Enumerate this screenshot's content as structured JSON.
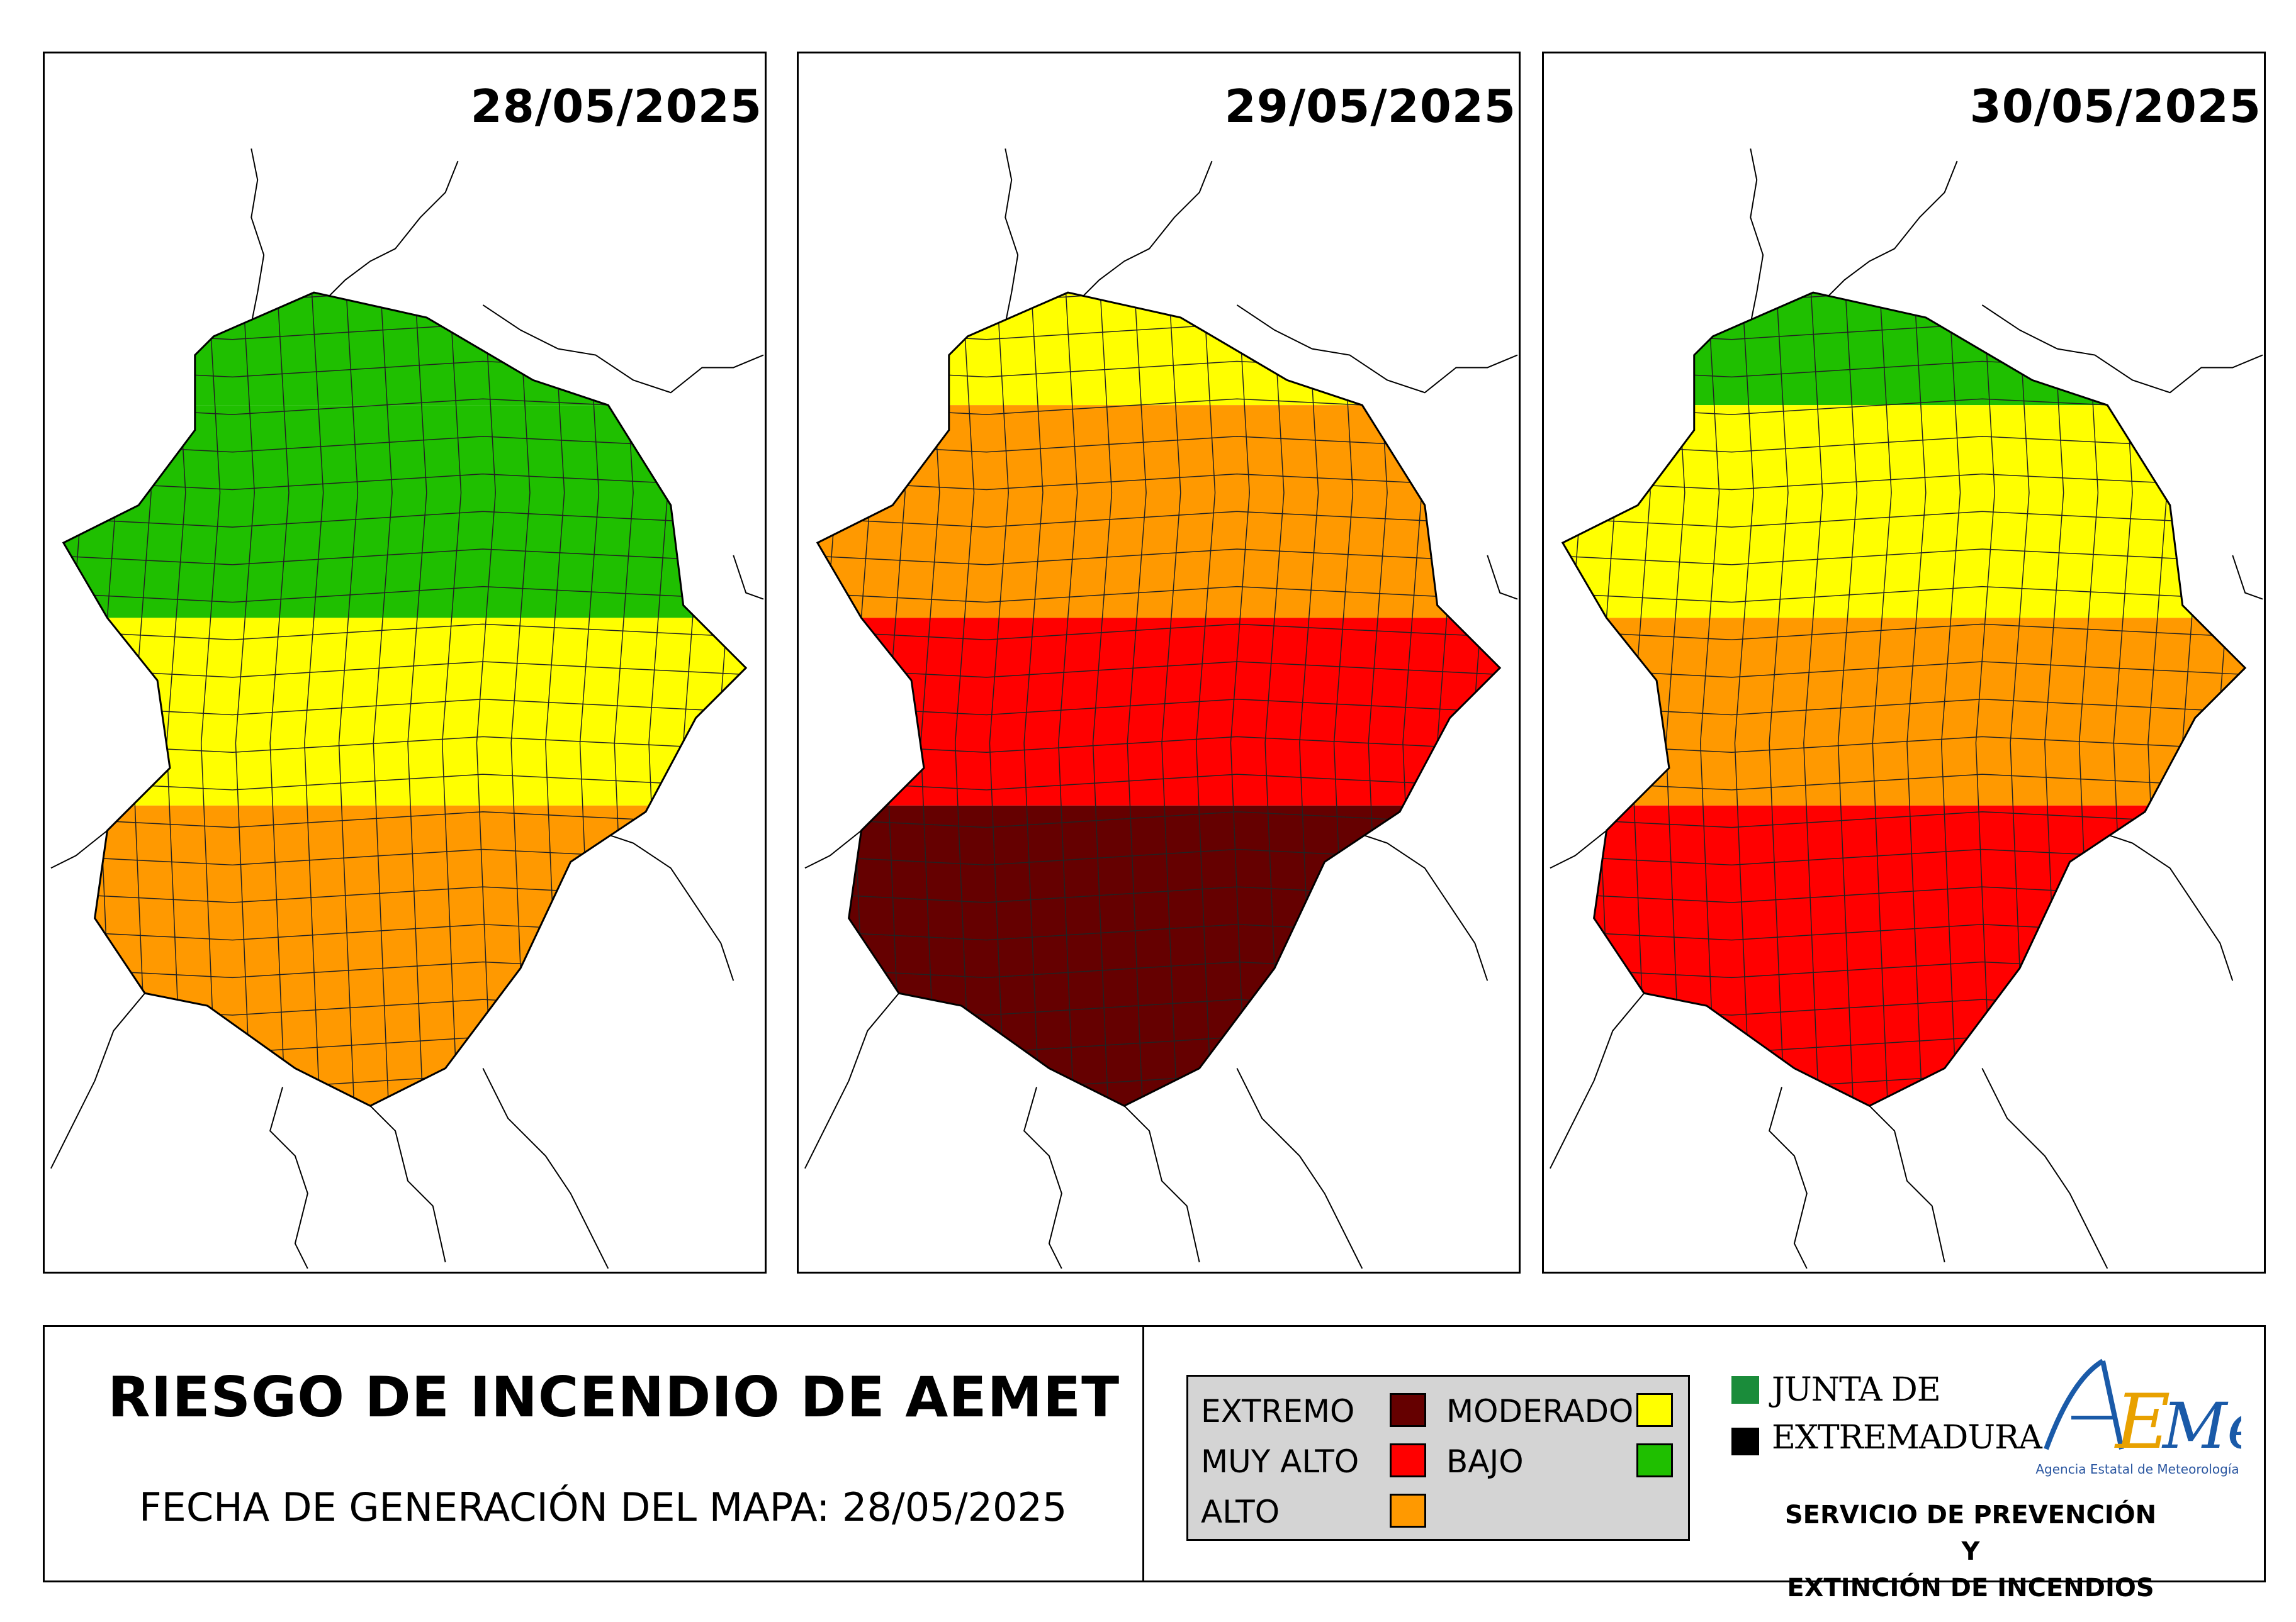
{
  "maps": [
    {
      "date": "28/05/2025",
      "scheme": [
        "#1fbf00",
        "#1fbf00",
        "#ffff00",
        "#ff9900"
      ]
    },
    {
      "date": "29/05/2025",
      "scheme": [
        "#ffff00",
        "#ff9900",
        "#ff0000",
        "#650000"
      ]
    },
    {
      "date": "30/05/2025",
      "scheme": [
        "#1fbf00",
        "#ffff00",
        "#ff9900",
        "#ff0000"
      ]
    }
  ],
  "footer": {
    "title": "RIESGO DE INCENDIO DE AEMET",
    "generation_date": "FECHA DE GENERACIÓN DEL MAPA: 28/05/2025"
  },
  "legend": {
    "items": [
      {
        "label": "EXTREMO",
        "color": "#650000"
      },
      {
        "label": "MUY ALTO",
        "color": "#ff0000"
      },
      {
        "label": "ALTO",
        "color": "#ff9900"
      },
      {
        "label": "MODERADO",
        "color": "#ffff00"
      },
      {
        "label": "BAJO",
        "color": "#1fbf00"
      }
    ]
  },
  "junta": {
    "line1": "JUNTA DE",
    "line2": "EXTREMADURA",
    "colors": [
      "#1a8c3a",
      "#000000"
    ]
  },
  "aemet": {
    "logo_text": "AEMet",
    "subtitle": "Agencia Estatal de Meteorología",
    "colors": [
      "#1a5aa8",
      "#e8a100"
    ]
  },
  "service": {
    "line1": "SERVICIO DE PREVENCIÓN Y",
    "line2": "EXTINCIÓN DE INCENDIOS"
  }
}
